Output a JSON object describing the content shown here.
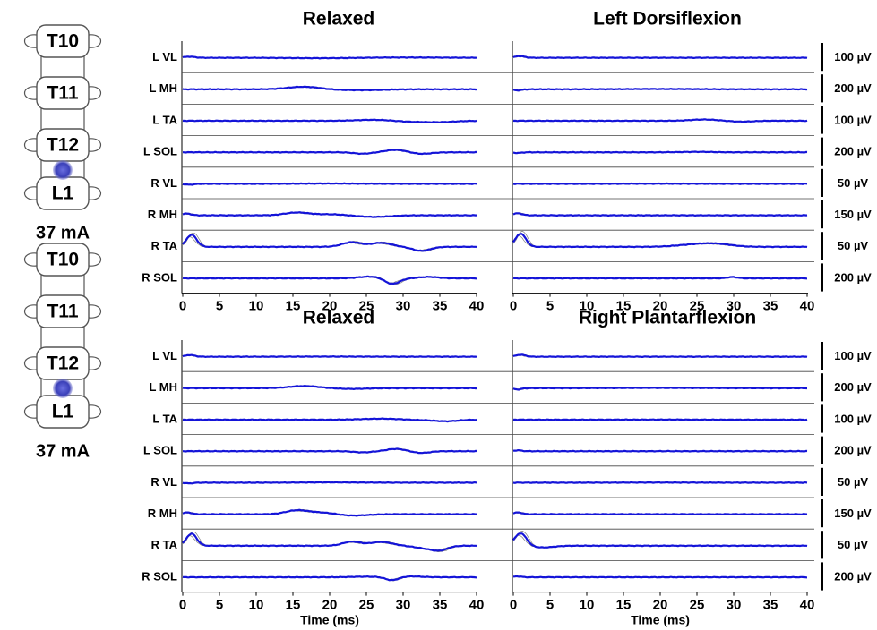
{
  "stim": {
    "vertebrae": [
      "T10",
      "T11",
      "T12",
      "L1"
    ],
    "current": "37 mA",
    "dot_color": "#3a3fb8"
  },
  "colors": {
    "trace": "#1414d8",
    "trial": "#555555",
    "axis": "#000000"
  },
  "channels": [
    "L VL",
    "L MH",
    "L TA",
    "L SOL",
    "R VL",
    "R MH",
    "R TA",
    "R SOL"
  ],
  "chart_data": [
    {
      "type": "line",
      "title_left": "Relaxed",
      "title_right": "Left Dorsiflexion",
      "xlabel": "",
      "xticks": [
        0,
        5,
        10,
        15,
        20,
        25,
        30,
        35,
        40
      ],
      "xlim": [
        0,
        40
      ],
      "scales": [
        "100 µV",
        "200 µV",
        "100 µV",
        "200 µV",
        "50 µV",
        "150 µV",
        "50 µV",
        "200 µV"
      ],
      "traces": {
        "left": [
          {
            "channel": "L VL",
            "events": [
              [
                0.9,
                0.4,
                0.7
              ],
              [
                19,
                -0.15,
                4
              ],
              [
                30,
                0.1,
                5
              ]
            ]
          },
          {
            "channel": "L MH",
            "events": [
              [
                16.5,
                0.9,
                2.2
              ],
              [
                22,
                -0.25,
                2.5
              ],
              [
                26,
                -0.2,
                2
              ]
            ]
          },
          {
            "channel": "L TA",
            "events": [
              [
                26,
                0.35,
                2.2
              ],
              [
                31,
                -0.3,
                2
              ],
              [
                35,
                -0.45,
                2
              ]
            ]
          },
          {
            "channel": "L SOL",
            "events": [
              [
                24.5,
                -0.5,
                1.2
              ],
              [
                29,
                0.85,
                1.4
              ],
              [
                32.5,
                -0.55,
                1.3
              ]
            ]
          },
          {
            "channel": "R VL",
            "events": [
              [
                0.9,
                -0.3,
                0.6
              ],
              [
                20,
                0.1,
                4
              ]
            ]
          },
          {
            "channel": "R MH",
            "events": [
              [
                0.5,
                0.6,
                0.6
              ],
              [
                15.5,
                0.95,
                1.6
              ],
              [
                20,
                0.35,
                2
              ],
              [
                26,
                -0.55,
                2.2
              ]
            ]
          },
          {
            "channel": "R TA",
            "events": [
              [
                1.2,
                4.2,
                0.7
              ],
              [
                23,
                1.6,
                1.3
              ],
              [
                27,
                1.4,
                1.4
              ],
              [
                32.5,
                -1.4,
                1.2
              ]
            ]
          },
          {
            "channel": "R SOL",
            "events": [
              [
                25.5,
                0.6,
                1.6
              ],
              [
                28.5,
                -2.0,
                1.0
              ],
              [
                33.5,
                0.5,
                1.3
              ]
            ]
          }
        ],
        "right": [
          {
            "channel": "L VL",
            "events": [
              [
                0.9,
                0.6,
                0.6
              ]
            ]
          },
          {
            "channel": "L MH",
            "events": [
              [
                0.6,
                -0.4,
                0.5
              ],
              [
                20,
                0.1,
                5
              ]
            ]
          },
          {
            "channel": "L TA",
            "events": [
              [
                26,
                0.45,
                1.8
              ],
              [
                31,
                -0.3,
                1.6
              ]
            ]
          },
          {
            "channel": "L SOL",
            "events": [
              [
                0.6,
                -0.25,
                0.5
              ],
              [
                25,
                0.15,
                2
              ]
            ]
          },
          {
            "channel": "R VL",
            "events": [
              [
                20,
                0.05,
                5
              ]
            ]
          },
          {
            "channel": "R MH",
            "events": [
              [
                0.6,
                0.7,
                0.6
              ]
            ]
          },
          {
            "channel": "R TA",
            "events": [
              [
                1.0,
                4.6,
                0.7
              ],
              [
                25,
                0.85,
                2.5
              ],
              [
                28,
                0.7,
                2
              ]
            ]
          },
          {
            "channel": "R SOL",
            "events": [
              [
                29.8,
                0.45,
                0.7
              ]
            ]
          }
        ]
      }
    },
    {
      "type": "line",
      "title_left": "Relaxed",
      "title_right": "Right Plantarflexion",
      "xlabel": "Time (ms)",
      "xticks": [
        0,
        5,
        10,
        15,
        20,
        25,
        30,
        35,
        40
      ],
      "xlim": [
        0,
        40
      ],
      "scales": [
        "100 µV",
        "200 µV",
        "100 µV",
        "200 µV",
        "50 µV",
        "150 µV",
        "50 µV",
        "200 µV"
      ],
      "traces": {
        "left": [
          {
            "channel": "L VL",
            "events": [
              [
                1.0,
                0.6,
                0.6
              ],
              [
                20,
                0.05,
                5
              ]
            ]
          },
          {
            "channel": "L MH",
            "events": [
              [
                16.5,
                0.75,
                2.0
              ],
              [
                23,
                -0.25,
                2
              ]
            ]
          },
          {
            "channel": "L TA",
            "events": [
              [
                27,
                0.35,
                2.5
              ],
              [
                33,
                -0.15,
                2
              ],
              [
                36,
                -0.5,
                1.5
              ]
            ]
          },
          {
            "channel": "L SOL",
            "events": [
              [
                24.5,
                -0.4,
                1.2
              ],
              [
                29,
                0.8,
                1.2
              ],
              [
                32.5,
                -0.6,
                1.1
              ]
            ]
          },
          {
            "channel": "R VL",
            "events": [
              [
                0.9,
                -0.25,
                0.5
              ],
              [
                20,
                0.1,
                4
              ]
            ]
          },
          {
            "channel": "R MH",
            "events": [
              [
                0.6,
                0.6,
                0.6
              ],
              [
                15.5,
                1.3,
                1.5
              ],
              [
                19,
                0.6,
                1.8
              ],
              [
                23,
                -0.5,
                2
              ]
            ]
          },
          {
            "channel": "R TA",
            "events": [
              [
                1.2,
                4.2,
                0.7
              ],
              [
                23,
                1.4,
                1.2
              ],
              [
                27,
                1.3,
                1.5
              ],
              [
                33,
                -0.8,
                1.5
              ],
              [
                35,
                -1.4,
                1.1
              ]
            ]
          },
          {
            "channel": "R SOL",
            "events": [
              [
                25,
                0.2,
                2
              ],
              [
                28.5,
                -1.1,
                0.9
              ],
              [
                31,
                0.3,
                1.5
              ]
            ]
          }
        ],
        "right": [
          {
            "channel": "L VL",
            "events": [
              [
                1.0,
                0.7,
                0.6
              ]
            ]
          },
          {
            "channel": "L MH",
            "events": [
              [
                0.6,
                -0.45,
                0.5
              ],
              [
                20,
                0.1,
                6
              ]
            ]
          },
          {
            "channel": "L TA",
            "events": [
              [
                20,
                0.03,
                5
              ]
            ]
          },
          {
            "channel": "L SOL",
            "events": [
              [
                0.6,
                0.3,
                0.5
              ]
            ]
          },
          {
            "channel": "R VL",
            "events": [
              [
                20,
                0.05,
                5
              ]
            ]
          },
          {
            "channel": "R MH",
            "events": [
              [
                0.6,
                0.6,
                0.6
              ]
            ]
          },
          {
            "channel": "R TA",
            "events": [
              [
                1.0,
                4.4,
                0.8
              ],
              [
                4,
                -0.6,
                1.5
              ]
            ]
          },
          {
            "channel": "R SOL",
            "events": [
              [
                0.6,
                0.3,
                0.5
              ]
            ]
          }
        ]
      }
    }
  ]
}
